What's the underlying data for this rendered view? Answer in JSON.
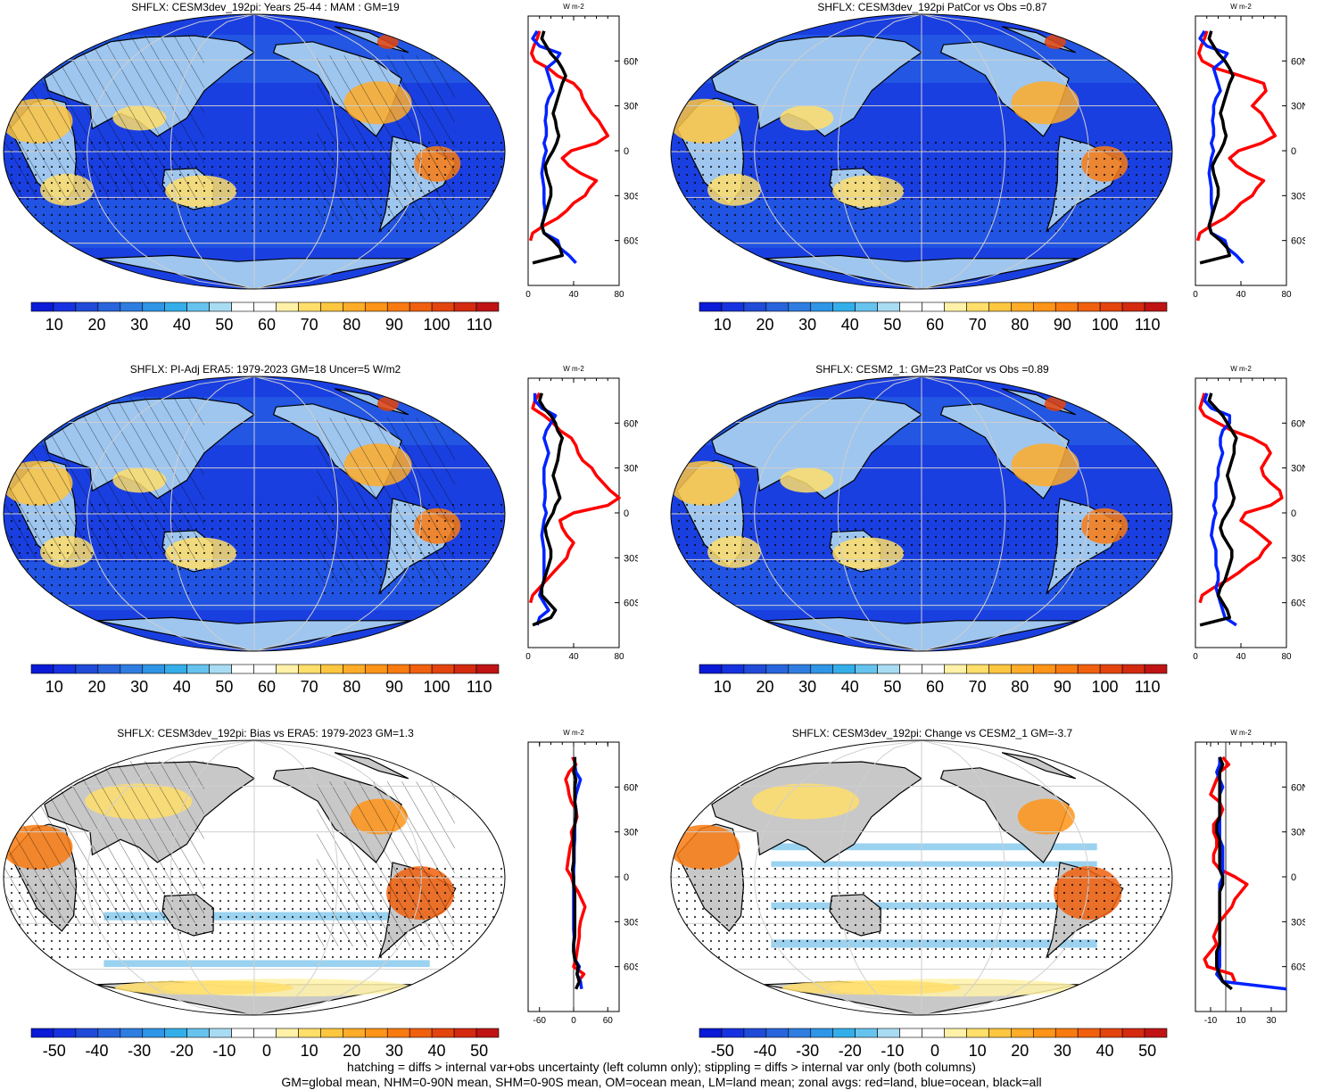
{
  "footer": {
    "line1": "hatching = diffs > internal var+obs uncertainty (left column only); stippling = diffs > internal var only (both columns)",
    "line2": "GM=global mean, NHM=0-90N mean, SHM=0-90S mean, OM=ocean mean, LM=land mean; zonal avgs: red=land, blue=ocean, black=all"
  },
  "colors": {
    "land_line": "#ff0000",
    "ocean_line": "#0022ff",
    "all_line": "#000000",
    "map_blue": "#1a3fe0",
    "grid": "#cfcfcf"
  },
  "colorbars": {
    "absolute": {
      "colors": [
        "#0a1ad6",
        "#1632e0",
        "#1f4bd8",
        "#2865dd",
        "#2f7de0",
        "#2f95e6",
        "#34aee8",
        "#66c3ee",
        "#a8dcf3",
        "#ffffff",
        "#ffffff",
        "#fff2a8",
        "#ffde6a",
        "#ffc640",
        "#ffac28",
        "#ff9418",
        "#f97a10",
        "#f0600e",
        "#e4440e",
        "#d42a10",
        "#c01414"
      ],
      "labels": [
        "10",
        "20",
        "30",
        "40",
        "50",
        "60",
        "70",
        "80",
        "90",
        "100",
        "110"
      ]
    },
    "difference": {
      "colors": [
        "#0a1ad6",
        "#1632e0",
        "#1f4bd8",
        "#2865dd",
        "#2f7de0",
        "#2f95e6",
        "#34aee8",
        "#66c3ee",
        "#a8dcf3",
        "#ffffff",
        "#ffffff",
        "#fff2a8",
        "#ffde6a",
        "#ffc640",
        "#ffac28",
        "#ff9418",
        "#f97a10",
        "#f0600e",
        "#e4440e",
        "#d42a10",
        "#c01414"
      ],
      "labels": [
        "-50",
        "-40",
        "-30",
        "-20",
        "-10",
        "0",
        "10",
        "20",
        "30",
        "40",
        "50"
      ]
    }
  },
  "chart_data": [
    {
      "type": "heatmap",
      "title": "SHFLX: CESM3dev_192pi: Years 25-44 : MAM : GM=19",
      "map_style": "abs",
      "hatched": true,
      "colorbar": "absolute",
      "zonal": {
        "unit": "W m-2",
        "xticks": [
          "0",
          "40",
          "80"
        ],
        "xlim": [
          0,
          80
        ],
        "yticks": [
          "60N",
          "30N",
          "0",
          "30S",
          "60S"
        ],
        "lats": [
          80,
          75,
          70,
          65,
          60,
          55,
          50,
          45,
          40,
          35,
          30,
          25,
          20,
          15,
          10,
          5,
          0,
          -5,
          -10,
          -15,
          -20,
          -25,
          -30,
          -35,
          -40,
          -45,
          -50,
          -55,
          -60,
          -65,
          -70,
          -75
        ],
        "land": [
          10,
          8,
          5,
          3,
          6,
          18,
          26,
          40,
          46,
          48,
          52,
          56,
          62,
          66,
          70,
          60,
          38,
          30,
          36,
          46,
          60,
          54,
          50,
          40,
          34,
          26,
          14,
          4,
          2,
          null,
          2,
          null
        ],
        "ocean": [
          8,
          4,
          10,
          28,
          24,
          16,
          18,
          20,
          22,
          18,
          16,
          16,
          15,
          16,
          16,
          14,
          16,
          14,
          13,
          12,
          13,
          14,
          14,
          14,
          15,
          14,
          12,
          14,
          26,
          28,
          36,
          42
        ],
        "all": [
          14,
          12,
          16,
          20,
          26,
          30,
          33,
          30,
          28,
          26,
          24,
          22,
          24,
          25,
          27,
          25,
          22,
          18,
          15,
          16,
          18,
          20,
          20,
          18,
          16,
          14,
          12,
          14,
          22,
          28,
          30,
          4
        ]
      }
    },
    {
      "type": "heatmap",
      "title": "SHFLX: CESM3dev_192pi PatCor vs Obs =0.87",
      "map_style": "abs",
      "hatched": false,
      "colorbar": "absolute",
      "zonal": {
        "unit": "W m-2",
        "xticks": [
          "0",
          "40",
          "80"
        ],
        "xlim": [
          0,
          80
        ],
        "yticks": [
          "60N",
          "30N",
          "0",
          "30S",
          "60S"
        ],
        "lats": [
          80,
          75,
          70,
          65,
          60,
          55,
          50,
          45,
          40,
          35,
          30,
          25,
          20,
          15,
          10,
          5,
          0,
          -5,
          -10,
          -15,
          -20,
          -25,
          -30,
          -35,
          -40,
          -45,
          -50,
          -55,
          -60,
          -65,
          -70,
          -75
        ],
        "land": [
          10,
          8,
          5,
          3,
          6,
          18,
          40,
          60,
          62,
          56,
          50,
          58,
          62,
          66,
          70,
          58,
          38,
          30,
          36,
          46,
          60,
          54,
          50,
          40,
          34,
          26,
          14,
          4,
          2,
          null,
          2,
          null
        ],
        "ocean": [
          8,
          4,
          10,
          28,
          24,
          16,
          18,
          20,
          22,
          18,
          16,
          16,
          15,
          16,
          16,
          14,
          16,
          14,
          13,
          12,
          13,
          14,
          14,
          14,
          15,
          14,
          12,
          14,
          26,
          28,
          36,
          42
        ],
        "all": [
          14,
          12,
          16,
          20,
          26,
          30,
          33,
          30,
          28,
          26,
          24,
          22,
          24,
          25,
          27,
          25,
          22,
          18,
          15,
          16,
          18,
          20,
          20,
          18,
          16,
          14,
          12,
          14,
          22,
          28,
          30,
          4
        ]
      }
    },
    {
      "type": "heatmap",
      "title": "SHFLX: PI-Adj ERA5: 1979-2023 GM=18 Uncer=5 W/m2",
      "map_style": "abs",
      "hatched": true,
      "colorbar": "absolute",
      "zonal": {
        "unit": "W m-2",
        "xticks": [
          "0",
          "40",
          "80"
        ],
        "xlim": [
          0,
          80
        ],
        "yticks": [
          "60N",
          "30N",
          "0",
          "30S",
          "60S"
        ],
        "lats": [
          80,
          75,
          70,
          65,
          60,
          55,
          50,
          45,
          40,
          35,
          30,
          25,
          20,
          15,
          10,
          5,
          0,
          -5,
          -10,
          -15,
          -20,
          -25,
          -30,
          -35,
          -40,
          -45,
          -50,
          -55,
          -60,
          -65,
          -70,
          -75
        ],
        "land": [
          10,
          6,
          4,
          14,
          22,
          28,
          38,
          42,
          44,
          48,
          56,
          60,
          66,
          72,
          80,
          70,
          40,
          28,
          30,
          34,
          40,
          36,
          34,
          28,
          22,
          16,
          10,
          4,
          2,
          null,
          2,
          null
        ],
        "ocean": [
          6,
          6,
          12,
          24,
          20,
          16,
          14,
          16,
          18,
          16,
          14,
          14,
          14,
          15,
          15,
          14,
          16,
          14,
          13,
          12,
          13,
          14,
          14,
          14,
          14,
          14,
          12,
          10,
          14,
          18,
          10,
          8
        ],
        "all": [
          12,
          10,
          14,
          20,
          24,
          26,
          30,
          28,
          27,
          26,
          24,
          22,
          24,
          26,
          28,
          24,
          22,
          18,
          15,
          16,
          18,
          20,
          20,
          18,
          16,
          14,
          12,
          12,
          18,
          24,
          20,
          4
        ]
      }
    },
    {
      "type": "heatmap",
      "title": "SHFLX: CESM2_1: GM=23 PatCor vs Obs =0.89",
      "map_style": "abs",
      "hatched": false,
      "colorbar": "absolute",
      "zonal": {
        "unit": "W m-2",
        "xticks": [
          "0",
          "40",
          "80"
        ],
        "xlim": [
          0,
          80
        ],
        "yticks": [
          "60N",
          "30N",
          "0",
          "30S",
          "60S"
        ],
        "lats": [
          80,
          75,
          70,
          65,
          60,
          55,
          50,
          45,
          40,
          35,
          30,
          25,
          20,
          15,
          10,
          5,
          0,
          -5,
          -10,
          -15,
          -20,
          -25,
          -30,
          -35,
          -40,
          -45,
          -50,
          -55,
          -60,
          -65,
          -70,
          -75
        ],
        "land": [
          8,
          6,
          4,
          8,
          20,
          32,
          50,
          62,
          66,
          62,
          58,
          60,
          66,
          74,
          76,
          66,
          44,
          40,
          50,
          58,
          66,
          60,
          56,
          46,
          38,
          28,
          16,
          6,
          4,
          null,
          2,
          null
        ],
        "ocean": [
          10,
          8,
          14,
          30,
          30,
          24,
          22,
          22,
          24,
          22,
          20,
          20,
          18,
          18,
          18,
          16,
          18,
          16,
          15,
          14,
          16,
          18,
          18,
          18,
          20,
          20,
          18,
          20,
          22,
          24,
          26,
          36
        ],
        "all": [
          14,
          12,
          18,
          24,
          28,
          32,
          36,
          34,
          34,
          32,
          30,
          28,
          30,
          32,
          34,
          32,
          28,
          24,
          22,
          24,
          28,
          32,
          32,
          30,
          28,
          26,
          22,
          20,
          24,
          28,
          30,
          4
        ]
      }
    },
    {
      "type": "heatmap",
      "title": "SHFLX: CESM3dev_192pi: Bias vs ERA5: 1979-2023 GM=1.3",
      "map_style": "diff1",
      "hatched": true,
      "colorbar": "difference",
      "zonal": {
        "unit": "W m-2",
        "xticks": [
          "-60",
          "0",
          "60"
        ],
        "xlim": [
          -80,
          80
        ],
        "yticks": [
          "60N",
          "30N",
          "0",
          "30S",
          "60S"
        ],
        "lats": [
          80,
          75,
          70,
          65,
          60,
          55,
          50,
          45,
          40,
          35,
          30,
          25,
          20,
          15,
          10,
          5,
          0,
          -5,
          -10,
          -15,
          -20,
          -25,
          -30,
          -35,
          -40,
          -45,
          -50,
          -55,
          -60,
          -65,
          -70,
          -75
        ],
        "land": [
          -2,
          4,
          -8,
          -14,
          -10,
          -8,
          -4,
          4,
          6,
          2,
          -4,
          -2,
          -6,
          -8,
          -10,
          -12,
          -4,
          0,
          8,
          14,
          20,
          16,
          12,
          10,
          10,
          8,
          6,
          4,
          0,
          18,
          8,
          null
        ],
        "ocean": [
          2,
          2,
          4,
          12,
          8,
          4,
          2,
          4,
          4,
          2,
          2,
          2,
          1,
          1,
          1,
          0,
          0,
          0,
          0,
          0,
          0,
          0,
          0,
          0,
          1,
          0,
          0,
          2,
          10,
          6,
          12,
          14
        ],
        "all": [
          2,
          2,
          0,
          4,
          2,
          2,
          2,
          4,
          4,
          2,
          0,
          0,
          0,
          0,
          0,
          -2,
          0,
          0,
          2,
          2,
          2,
          2,
          2,
          2,
          2,
          0,
          0,
          2,
          8,
          6,
          10,
          4
        ]
      }
    },
    {
      "type": "heatmap",
      "title": "SHFLX: CESM3dev_192pi: Change vs CESM2_1 GM=-3.7",
      "map_style": "diff2",
      "hatched": false,
      "colorbar": "difference",
      "zonal": {
        "unit": "W m-2",
        "xticks": [
          "-10",
          "10",
          "30"
        ],
        "xlim": [
          -20,
          40
        ],
        "yticks": [
          "60N",
          "30N",
          "0",
          "30S",
          "60S"
        ],
        "lats": [
          80,
          75,
          70,
          65,
          60,
          55,
          50,
          45,
          40,
          35,
          30,
          25,
          20,
          15,
          10,
          5,
          0,
          -5,
          -10,
          -15,
          -20,
          -25,
          -30,
          -35,
          -40,
          -45,
          -50,
          -55,
          -60,
          -65,
          -70,
          -75
        ],
        "land": [
          -2,
          2,
          -4,
          -6,
          -8,
          -10,
          -4,
          -2,
          -4,
          -8,
          -8,
          -6,
          -6,
          -8,
          -8,
          -4,
          6,
          14,
          10,
          6,
          4,
          0,
          -4,
          -6,
          -8,
          -6,
          -10,
          -14,
          -12,
          4,
          6,
          null
        ],
        "ocean": [
          -4,
          -4,
          -6,
          -4,
          -2,
          -4,
          -4,
          -4,
          -4,
          -4,
          -4,
          -4,
          -2,
          -2,
          -2,
          -2,
          -2,
          -4,
          -4,
          -4,
          -4,
          -4,
          -4,
          -4,
          -4,
          -4,
          -4,
          -4,
          -4,
          -6,
          -2,
          40
        ],
        "all": [
          -4,
          -2,
          -4,
          -4,
          -4,
          -4,
          -4,
          -4,
          -4,
          -6,
          -6,
          -4,
          -4,
          -4,
          -4,
          -4,
          -2,
          -2,
          -4,
          -4,
          -4,
          -4,
          -4,
          -4,
          -4,
          -4,
          -6,
          -6,
          -6,
          -4,
          -2,
          4
        ]
      }
    }
  ]
}
